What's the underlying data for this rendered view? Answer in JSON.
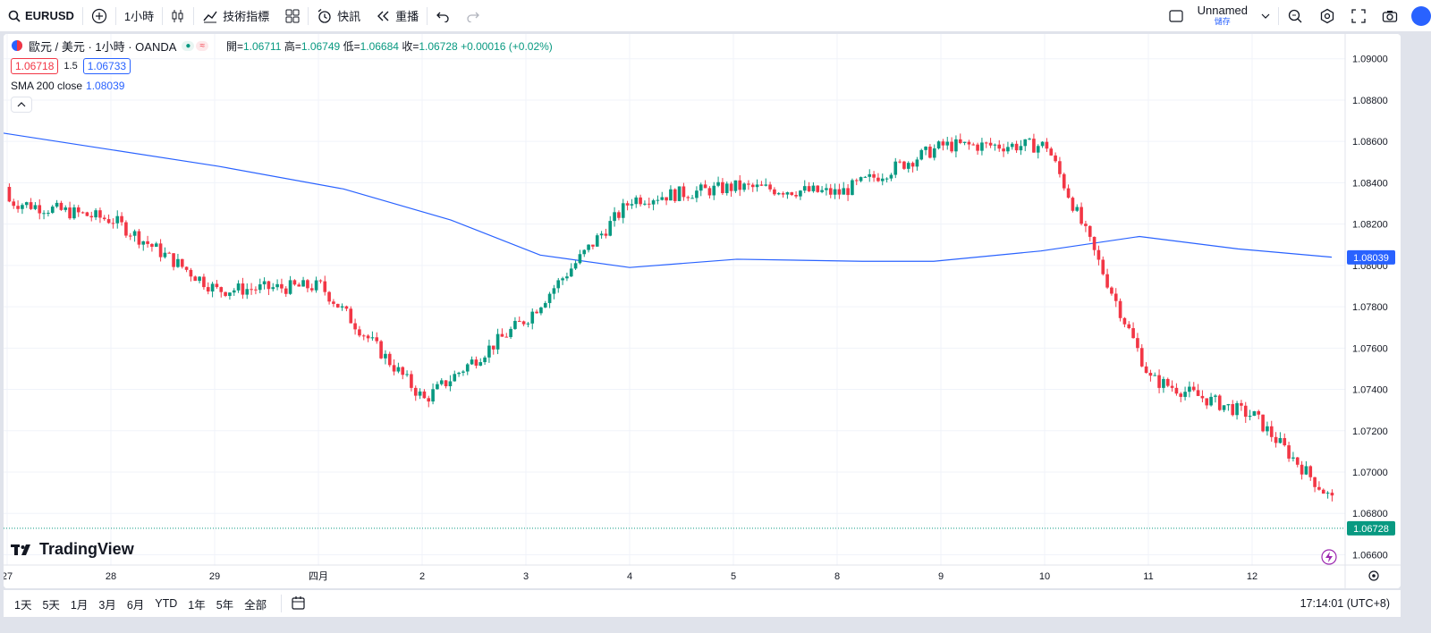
{
  "toolbar": {
    "symbol": "EURUSD",
    "interval": "1小時",
    "indicators_label": "技術指標",
    "alerts_label": "快訊",
    "replay_label": "重播",
    "layout_name": "Unnamed",
    "save_label": "儲存"
  },
  "legend": {
    "title": "歐元 / 美元 · 1小時 · OANDA",
    "open_label": "開=",
    "open": "1.06711",
    "high_label": "高=",
    "high": "1.06749",
    "low_label": "低=",
    "low": "1.06684",
    "close_label": "收=",
    "close": "1.06728",
    "change": "+0.00016 (+0.02%)",
    "bid": "1.06718",
    "spread": "1.5",
    "ask": "1.06733",
    "sma_label": "SMA 200 close",
    "sma_value": "1.08039"
  },
  "chart_data": {
    "type": "candlestick",
    "y_ticks": [
      "1.09000",
      "1.08800",
      "1.08600",
      "1.08400",
      "1.08200",
      "1.08000",
      "1.07800",
      "1.07600",
      "1.07400",
      "1.07200",
      "1.07000",
      "1.06800",
      "1.06600"
    ],
    "x_ticks": [
      "27",
      "28",
      "29",
      "四月",
      "2",
      "3",
      "4",
      "5",
      "8",
      "9",
      "10",
      "11",
      "12"
    ],
    "ylim": [
      1.0655,
      1.0912
    ],
    "sma_label_value": "1.08039",
    "last_price_label": "1.06728",
    "ohlc_key": [
      {
        "x": "27",
        "close": 1.0831
      },
      {
        "x": "28",
        "close": 1.0822
      },
      {
        "x": "29",
        "close": 1.0788
      },
      {
        "x": "四月",
        "close": 1.079
      },
      {
        "x": "2",
        "close": 1.0735
      },
      {
        "x": "3",
        "close": 1.0775
      },
      {
        "x": "4",
        "close": 1.0832
      },
      {
        "x": "5",
        "close": 1.0838
      },
      {
        "x": "8",
        "close": 1.0835
      },
      {
        "x": "9",
        "close": 1.0858
      },
      {
        "x": "10",
        "close": 1.0858
      },
      {
        "x": "11",
        "close": 1.0745
      },
      {
        "x": "12",
        "close": 1.0727
      }
    ],
    "colors": {
      "up": "#089981",
      "down": "#f23645",
      "sma": "#2962ff",
      "grid": "#f0f3fa"
    }
  },
  "bottom": {
    "ranges": [
      "1天",
      "5天",
      "1月",
      "3月",
      "6月",
      "YTD",
      "1年",
      "5年",
      "全部"
    ],
    "clock": "17:14:01 (UTC+8)"
  }
}
